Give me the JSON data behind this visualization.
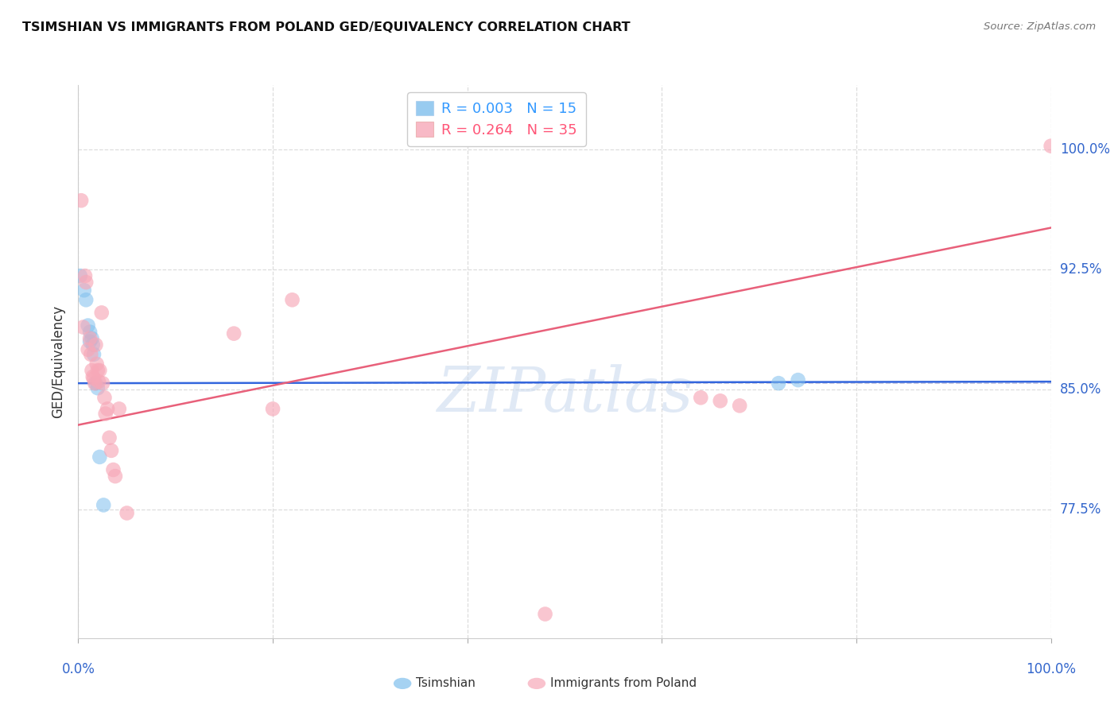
{
  "title": "TSIMSHIAN VS IMMIGRANTS FROM POLAND GED/EQUIVALENCY CORRELATION CHART",
  "source": "Source: ZipAtlas.com",
  "ylabel": "GED/Equivalency",
  "ytick_labels": [
    "77.5%",
    "85.0%",
    "92.5%",
    "100.0%"
  ],
  "ytick_values": [
    0.775,
    0.85,
    0.925,
    1.0
  ],
  "xlim": [
    0.0,
    1.0
  ],
  "ylim": [
    0.695,
    1.04
  ],
  "legend1_label": "R = 0.003   N = 15",
  "legend2_label": "R = 0.264   N = 35",
  "legend_xlabel1": "Tsimshian",
  "legend_xlabel2": "Immigrants from Poland",
  "blue_color": "#7fbfed",
  "pink_color": "#f7a8b8",
  "blue_line_color": "#3366dd",
  "pink_line_color": "#e8607a",
  "dashed_line_color": "#aaaacc",
  "grid_color": "#dddddd",
  "watermark": "ZIPatlas",
  "blue_points_x": [
    0.002,
    0.006,
    0.008,
    0.01,
    0.012,
    0.012,
    0.014,
    0.015,
    0.016,
    0.018,
    0.02,
    0.022,
    0.026,
    0.72,
    0.74
  ],
  "blue_points_y": [
    0.921,
    0.912,
    0.906,
    0.89,
    0.886,
    0.88,
    0.882,
    0.878,
    0.872,
    0.854,
    0.851,
    0.808,
    0.778,
    0.854,
    0.856
  ],
  "pink_points_x": [
    0.003,
    0.005,
    0.007,
    0.008,
    0.01,
    0.012,
    0.013,
    0.014,
    0.015,
    0.016,
    0.017,
    0.018,
    0.019,
    0.02,
    0.021,
    0.022,
    0.024,
    0.025,
    0.027,
    0.028,
    0.03,
    0.032,
    0.034,
    0.036,
    0.038,
    0.042,
    0.05,
    0.16,
    0.2,
    0.22,
    0.48,
    0.64,
    0.66,
    0.68,
    1.0
  ],
  "pink_points_y": [
    0.968,
    0.889,
    0.921,
    0.917,
    0.875,
    0.882,
    0.872,
    0.862,
    0.858,
    0.857,
    0.854,
    0.878,
    0.866,
    0.862,
    0.855,
    0.862,
    0.898,
    0.854,
    0.845,
    0.835,
    0.838,
    0.82,
    0.812,
    0.8,
    0.796,
    0.838,
    0.773,
    0.885,
    0.838,
    0.906,
    0.71,
    0.845,
    0.843,
    0.84,
    1.002
  ],
  "blue_R": 0.003,
  "blue_N": 15,
  "pink_R": 0.264,
  "pink_N": 35,
  "blue_line_x": [
    0.0,
    1.0
  ],
  "blue_line_y": [
    0.854,
    0.855
  ],
  "pink_line_x": [
    0.0,
    1.0
  ],
  "pink_line_y": [
    0.828,
    0.951
  ]
}
